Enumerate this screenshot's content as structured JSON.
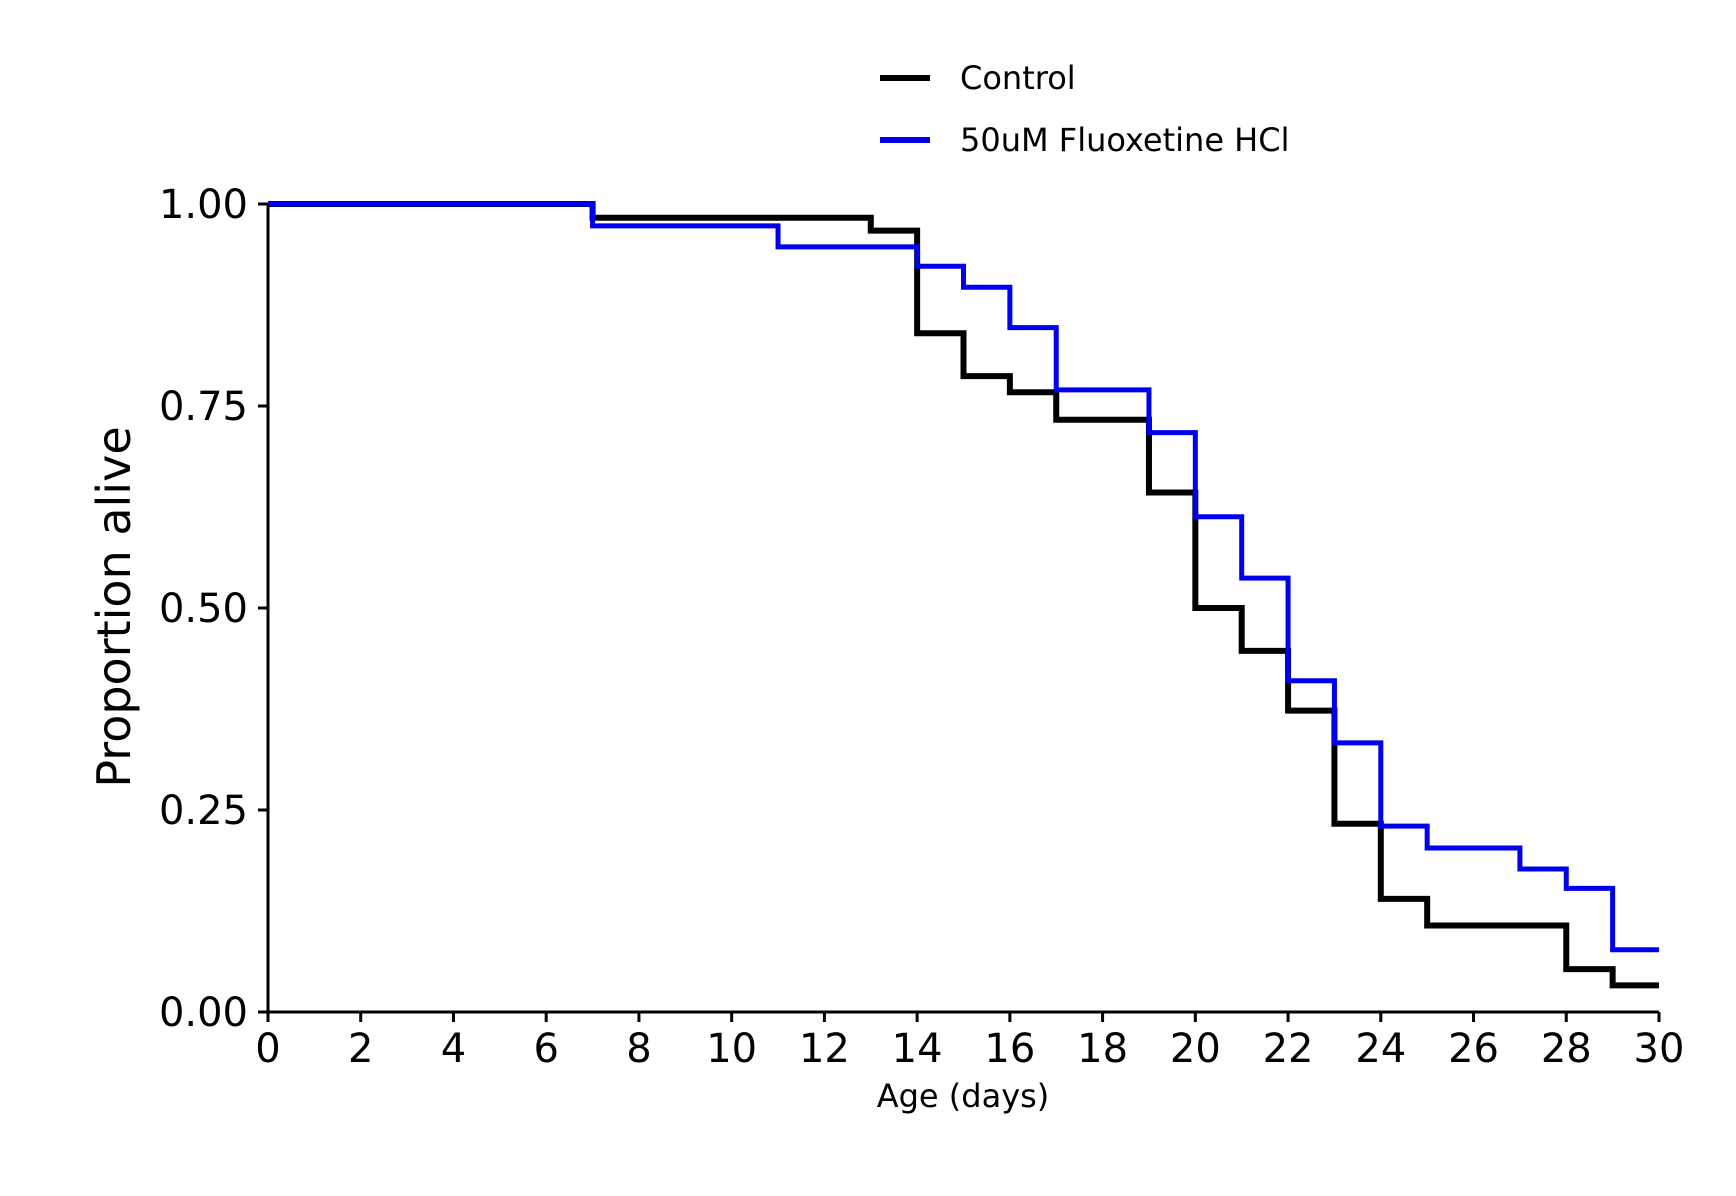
{
  "chart_data": {
    "type": "line",
    "step": true,
    "xlabel": "Age (days)",
    "ylabel": "Proportion alive",
    "xlim": [
      0,
      30
    ],
    "ylim": [
      0,
      1
    ],
    "x_ticks": [
      "0",
      "2",
      "4",
      "6",
      "8",
      "10",
      "12",
      "14",
      "16",
      "18",
      "20",
      "22",
      "24",
      "26",
      "28",
      "30"
    ],
    "y_ticks": [
      "0.00",
      "0.25",
      "0.50",
      "0.75",
      "1.00"
    ],
    "grid": false,
    "legend_position": "top-center",
    "series": [
      {
        "name": "Control",
        "color": "#000000",
        "x": [
          0,
          7,
          13,
          14,
          15,
          16,
          17,
          19,
          20,
          21,
          22,
          23,
          24,
          25,
          28,
          29,
          30
        ],
        "y": [
          1.0,
          0.983,
          0.967,
          0.84,
          0.787,
          0.767,
          0.733,
          0.643,
          0.5,
          0.447,
          0.373,
          0.233,
          0.14,
          0.107,
          0.053,
          0.033,
          0.033
        ]
      },
      {
        "name": "50uM Fluoxetine HCl",
        "color": "#0000ee",
        "x": [
          0,
          7,
          11,
          14,
          15,
          16,
          17,
          19,
          20,
          21,
          22,
          23,
          24,
          25,
          27,
          28,
          29,
          30
        ],
        "y": [
          1.0,
          0.973,
          0.947,
          0.923,
          0.897,
          0.847,
          0.77,
          0.717,
          0.613,
          0.537,
          0.41,
          0.333,
          0.23,
          0.203,
          0.177,
          0.153,
          0.077,
          0.077
        ]
      }
    ]
  }
}
